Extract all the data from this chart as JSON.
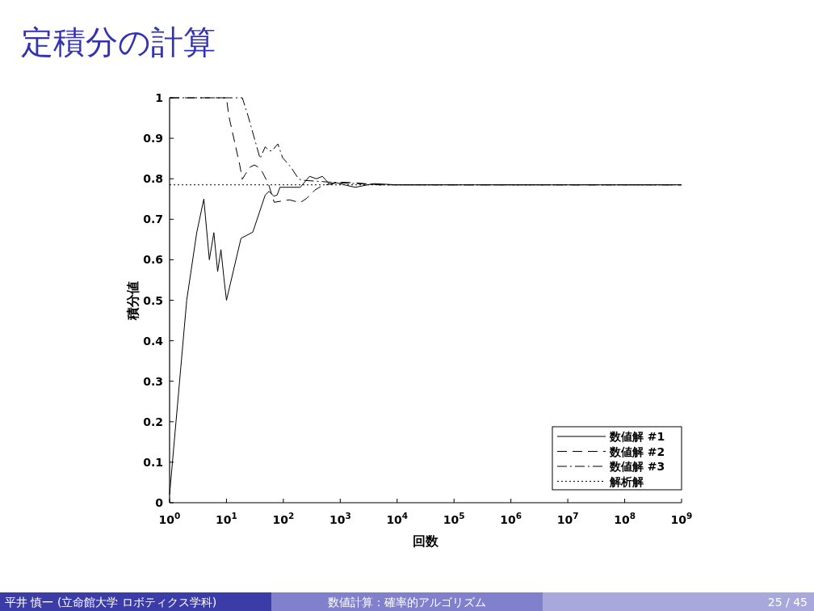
{
  "chart_data": {
    "type": "line",
    "title": "定積分の計算",
    "xlabel": "回数",
    "ylabel": "積分値",
    "log": "x",
    "xlim": [
      1,
      1000000000
    ],
    "ylim": [
      0,
      1
    ],
    "xticks": [
      {
        "value": 1,
        "label": "10$^{0}$"
      },
      {
        "value": 10,
        "label": "10$^{1}$"
      },
      {
        "value": 100,
        "label": "10$^{2}$"
      },
      {
        "value": 1000,
        "label": "10$^{3}$"
      },
      {
        "value": 10000,
        "label": "10$^{4}$"
      },
      {
        "value": 100000,
        "label": "10$^{5}$"
      },
      {
        "value": 1000000,
        "label": "10$^{6}$"
      },
      {
        "value": 10000000,
        "label": "10$^{7}$"
      },
      {
        "value": 100000000,
        "label": "10$^{8}$"
      },
      {
        "value": 1000000000,
        "label": "10$^{9}$"
      }
    ],
    "yticks": [
      0,
      0.1,
      0.2,
      0.3,
      0.4,
      0.5,
      0.6,
      0.7,
      0.8,
      0.9,
      1
    ],
    "legend": "bottom right",
    "series": [
      {
        "name": "数値解 #1",
        "color": "#000000",
        "line_style": "solid",
        "x": [
          1,
          2,
          3,
          4,
          5,
          6,
          7,
          8,
          9,
          10,
          18,
          29,
          48,
          56,
          68,
          78,
          87,
          198,
          289,
          380,
          487,
          654,
          860,
          1465,
          1841,
          3908,
          10000,
          1000000000
        ],
        "values": [
          0.02,
          0.5,
          0.667,
          0.75,
          0.6,
          0.667,
          0.571,
          0.625,
          0.556,
          0.5,
          0.653,
          0.668,
          0.76,
          0.769,
          0.757,
          0.76,
          0.779,
          0.779,
          0.806,
          0.8,
          0.806,
          0.786,
          0.79,
          0.782,
          0.779,
          0.788,
          0.785,
          0.785
        ]
      },
      {
        "name": "数値解 #2",
        "color": "#000000",
        "line_style": "dashed",
        "x": [
          1,
          10,
          11,
          17,
          19,
          21,
          26,
          31,
          37,
          43,
          55,
          69,
          127,
          198,
          259,
          359,
          466,
          860,
          1841,
          4909,
          1000000000
        ],
        "values": [
          1,
          1,
          0.955,
          0.836,
          0.799,
          0.809,
          0.829,
          0.834,
          0.828,
          0.816,
          0.786,
          0.742,
          0.748,
          0.741,
          0.752,
          0.772,
          0.782,
          0.792,
          0.79,
          0.785,
          0.785
        ]
      },
      {
        "name": "数値解 #3",
        "color": "#000000",
        "line_style": "dashdot",
        "x": [
          1,
          19,
          24,
          39,
          48,
          56,
          63,
          80,
          97,
          135,
          187,
          233,
          1000,
          5000,
          1000000000
        ],
        "values": [
          1,
          1,
          0.955,
          0.85,
          0.879,
          0.869,
          0.869,
          0.886,
          0.852,
          0.829,
          0.799,
          0.796,
          0.79,
          0.785,
          0.785
        ]
      },
      {
        "name": "解析解",
        "color": "#000000",
        "line_style": "dotted",
        "x": [
          1,
          1000000000
        ],
        "values": [
          0.785,
          0.785
        ]
      }
    ],
    "annotations": [
      "平井 慎一 (立命館大学 ロボティクス学科)",
      "数値計算：確率的アルゴリズム",
      "25 / 45"
    ]
  }
}
